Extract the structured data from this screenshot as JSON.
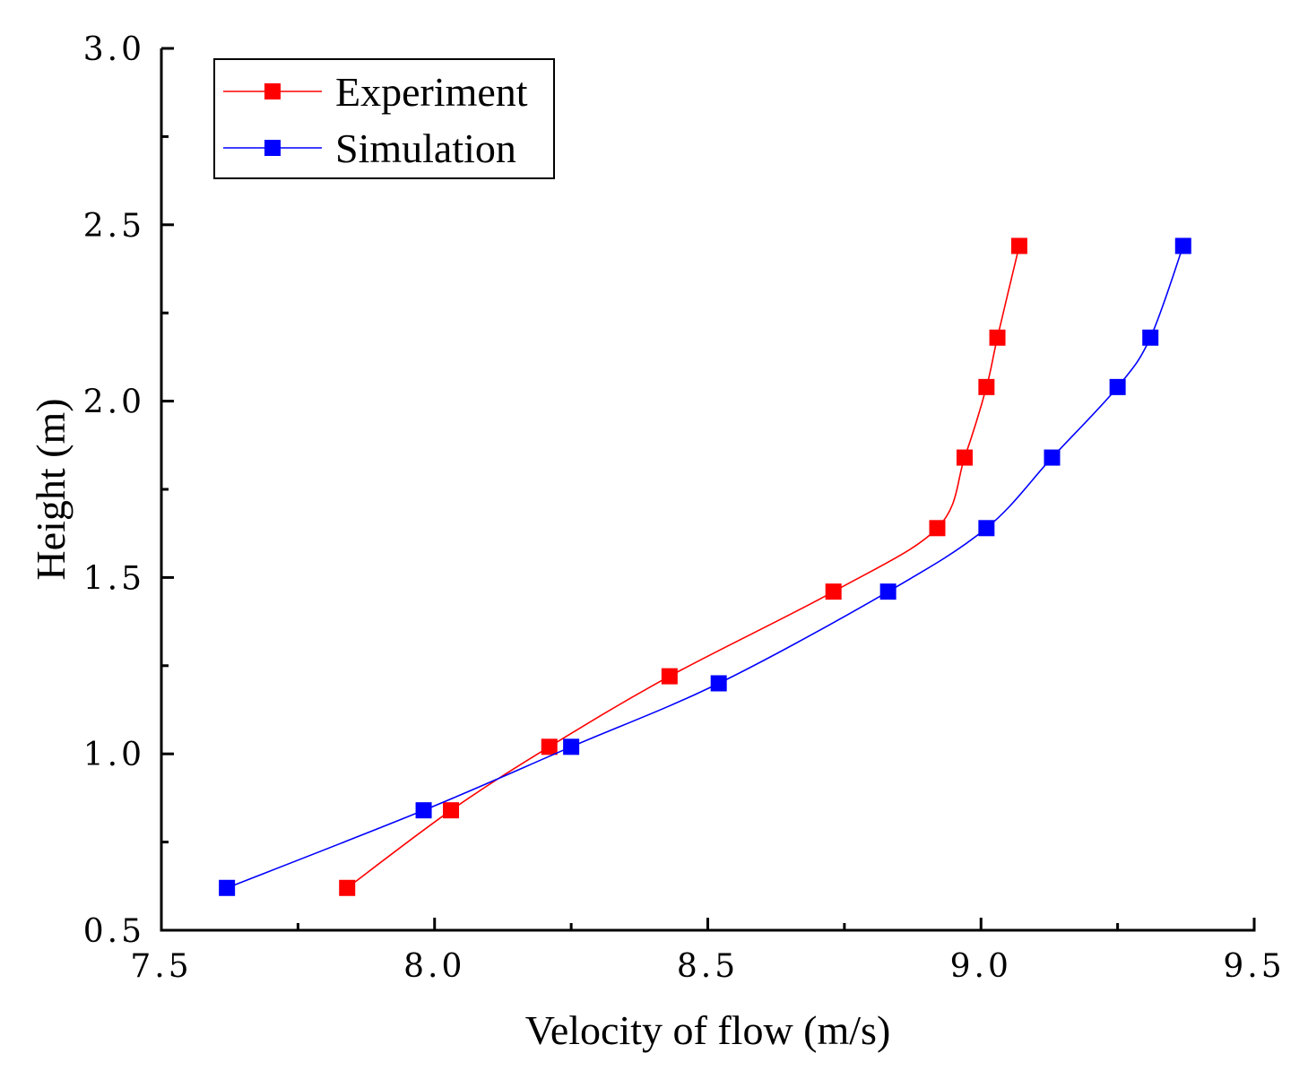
{
  "chart_data": {
    "type": "line",
    "xlabel": "Velocity of flow (m/s)",
    "ylabel": "Height (m)",
    "xlim": [
      7.5,
      9.5
    ],
    "ylim": [
      0.5,
      3.0
    ],
    "x_ticks": [
      "7.5",
      "8.0",
      "8.5",
      "9.0",
      "9.5"
    ],
    "y_ticks": [
      "0.5",
      "1.0",
      "1.5",
      "2.0",
      "2.5",
      "3.0"
    ],
    "x_tick_values": [
      7.5,
      8.0,
      8.5,
      9.0,
      9.5
    ],
    "y_tick_values": [
      0.5,
      1.0,
      1.5,
      2.0,
      2.5,
      3.0
    ],
    "x_minor_step": 0.25,
    "y_minor_step": 0.25,
    "grid": false,
    "legend_position": "top-left",
    "series": [
      {
        "name": "Experiment",
        "color": "#ff0000",
        "marker": "square",
        "points": [
          {
            "x": 7.84,
            "y": 0.62
          },
          {
            "x": 8.03,
            "y": 0.84
          },
          {
            "x": 8.21,
            "y": 1.02
          },
          {
            "x": 8.43,
            "y": 1.22
          },
          {
            "x": 8.73,
            "y": 1.46
          },
          {
            "x": 8.92,
            "y": 1.64
          },
          {
            "x": 8.97,
            "y": 1.84
          },
          {
            "x": 9.01,
            "y": 2.04
          },
          {
            "x": 9.03,
            "y": 2.18
          },
          {
            "x": 9.07,
            "y": 2.44
          }
        ]
      },
      {
        "name": "Simulation",
        "color": "#0000ff",
        "marker": "square",
        "points": [
          {
            "x": 7.62,
            "y": 0.62
          },
          {
            "x": 7.98,
            "y": 0.84
          },
          {
            "x": 8.25,
            "y": 1.02
          },
          {
            "x": 8.52,
            "y": 1.2
          },
          {
            "x": 8.83,
            "y": 1.46
          },
          {
            "x": 9.01,
            "y": 1.64
          },
          {
            "x": 9.13,
            "y": 1.84
          },
          {
            "x": 9.25,
            "y": 2.04
          },
          {
            "x": 9.31,
            "y": 2.18
          },
          {
            "x": 9.37,
            "y": 2.44
          }
        ]
      }
    ]
  }
}
